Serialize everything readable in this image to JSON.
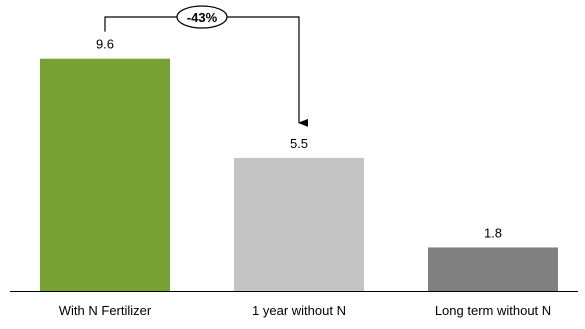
{
  "chart_data": {
    "type": "bar",
    "categories": [
      "With N Fertilizer",
      "1 year without N",
      "Long term without N"
    ],
    "values": [
      9.6,
      5.5,
      1.8
    ],
    "value_labels": [
      "9.6",
      "5.5",
      "1.8"
    ],
    "colors": [
      "#77A132",
      "#C4C4C4",
      "#808080"
    ],
    "title": "",
    "xlabel": "",
    "ylabel": "",
    "grid": false,
    "legend": "none",
    "annotation": {
      "text": "-43%",
      "from_category": "With N Fertilizer",
      "to_category": "1 year without N"
    }
  }
}
